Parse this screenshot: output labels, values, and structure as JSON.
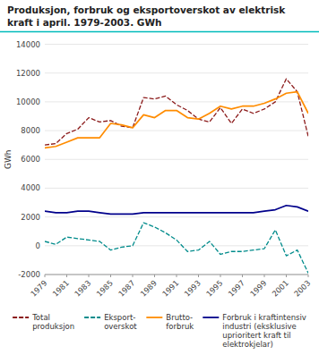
{
  "chart_data": {
    "type": "line",
    "title": "Produksjon, forbruk og eksportoverskot av elektrisk\nkraft i april. 1979-2003. GWh",
    "ylabel": "GWh",
    "x": [
      1979,
      1980,
      1981,
      1982,
      1983,
      1984,
      1985,
      1986,
      1987,
      1988,
      1989,
      1990,
      1991,
      1992,
      1993,
      1994,
      1995,
      1996,
      1997,
      1998,
      1999,
      2000,
      2001,
      2002,
      2003
    ],
    "series": [
      {
        "name": "Total\nproduksjon",
        "color": "#8B1A1A",
        "line_style": "dashed",
        "values": [
          7000,
          7100,
          7800,
          8100,
          8900,
          8600,
          8700,
          8300,
          8200,
          10300,
          10200,
          10400,
          9800,
          9400,
          8800,
          8600,
          9600,
          8500,
          9500,
          9200,
          9500,
          10000,
          11600,
          10700,
          7600
        ]
      },
      {
        "name": "Eksport-\noverskot",
        "color": "#008B8B",
        "line_style": "dashed",
        "values": [
          300,
          100,
          600,
          500,
          400,
          300,
          -300,
          -100,
          0,
          1600,
          1300,
          900,
          400,
          -400,
          -300,
          300,
          -600,
          -400,
          -400,
          -300,
          -200,
          1100,
          -700,
          -300,
          -1900
        ]
      },
      {
        "name": "Brutto-\nforbruk",
        "color": "#FF8C00",
        "line_style": "solid",
        "values": [
          6800,
          6900,
          7200,
          7500,
          7500,
          7500,
          8500,
          8400,
          8200,
          9100,
          8900,
          9400,
          9400,
          8900,
          8800,
          9200,
          9700,
          9500,
          9700,
          9700,
          9900,
          10200,
          10600,
          10700,
          9200
        ]
      },
      {
        "name": "Forbruk i kraftintensiv\nindustri (eksklusive\nuprioritert kraft til\nelektrokjelar)",
        "color": "#00008B",
        "line_style": "solid",
        "values": [
          2400,
          2300,
          2300,
          2400,
          2400,
          2300,
          2200,
          2200,
          2200,
          2300,
          2300,
          2300,
          2300,
          2300,
          2300,
          2300,
          2300,
          2300,
          2300,
          2300,
          2400,
          2500,
          2800,
          2700,
          2400
        ]
      }
    ],
    "xlim": [
      1979,
      2003
    ],
    "xticks": [
      1979,
      1981,
      1983,
      1985,
      1987,
      1989,
      1991,
      1993,
      1995,
      1997,
      1999,
      2001,
      2003
    ],
    "ylim": [
      -2000,
      14000
    ],
    "yticks": [
      -2000,
      0,
      2000,
      4000,
      6000,
      8000,
      10000,
      12000,
      14000
    ],
    "grid": true,
    "legend": "bottom"
  }
}
